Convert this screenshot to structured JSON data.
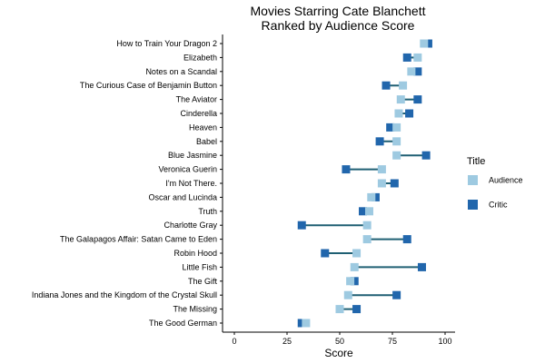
{
  "chart_data": {
    "type": "dumbbell",
    "title": "Movies Starring Cate Blanchett",
    "subtitle": "Ranked by Audience Score",
    "xlabel": "Score",
    "ylabel": "",
    "xlim": [
      -5,
      105
    ],
    "xticks": [
      0,
      25,
      50,
      75,
      100
    ],
    "grid": false,
    "legend": {
      "title": "Title",
      "position": "right",
      "entries": [
        {
          "name": "Audience",
          "color": "#9ecae1"
        },
        {
          "name": "Critic",
          "color": "#2166ac"
        }
      ]
    },
    "line_color": "#1f5f73",
    "categories": [
      "How to Train Your Dragon 2",
      "Elizabeth",
      "Notes on a Scandal",
      "The Curious Case of Benjamin Button",
      "The Aviator",
      "Cinderella",
      "Heaven",
      "Babel",
      "Blue Jasmine",
      "Veronica Guerin",
      "I'm Not There.",
      "Oscar and Lucinda",
      "Truth",
      "Charlotte Gray",
      "The Galapagos Affair: Satan Came to Eden",
      "Robin Hood",
      "Little Fish",
      "The Gift",
      "Indiana Jones and the Kingdom of the Crystal Skull",
      "The Missing",
      "The Good German"
    ],
    "series": [
      {
        "name": "Audience",
        "values": [
          90,
          87,
          84,
          80,
          79,
          78,
          77,
          77,
          77,
          70,
          70,
          65,
          64,
          63,
          63,
          58,
          57,
          55,
          54,
          50,
          34
        ]
      },
      {
        "name": "Critic",
        "values": [
          92,
          82,
          87,
          72,
          87,
          83,
          74,
          69,
          91,
          53,
          76,
          67,
          61,
          32,
          82,
          43,
          89,
          57,
          77,
          58,
          32
        ]
      }
    ]
  }
}
